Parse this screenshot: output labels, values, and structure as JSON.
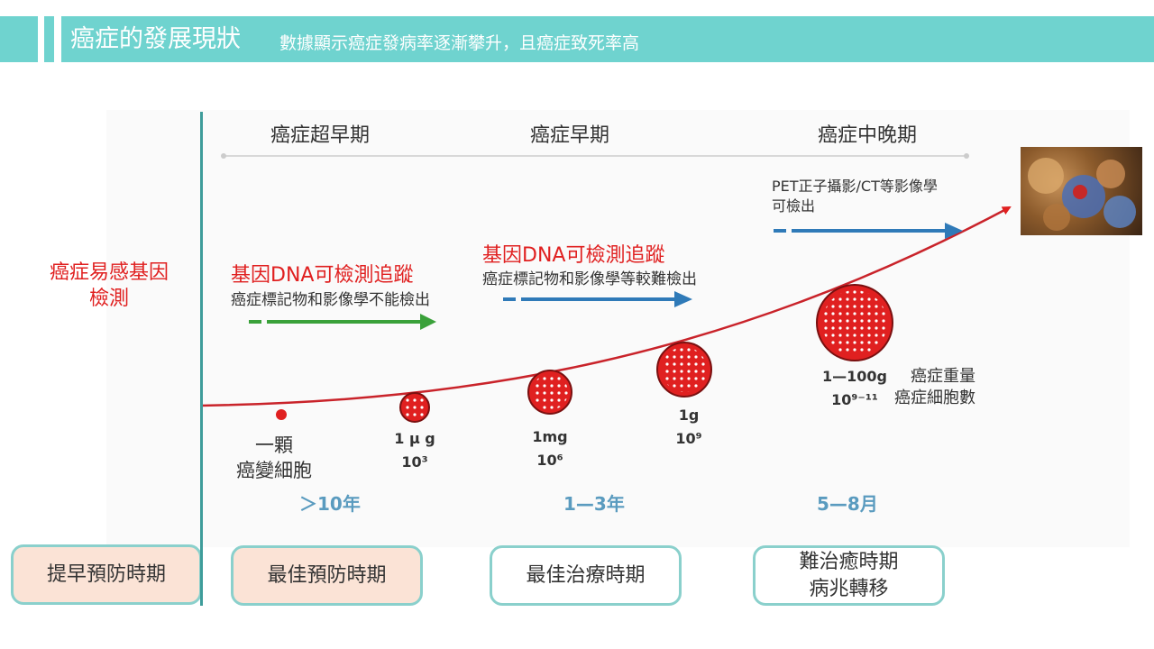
{
  "header": {
    "title": "癌症的發展現狀",
    "subtitle": "數據顯示癌症發病率逐漸攀升，且癌症致死率高"
  },
  "left_label": {
    "line1": "癌症易感基因",
    "line2": "檢測"
  },
  "phases": {
    "ultra_early": "癌症超早期",
    "early": "癌症早期",
    "mid_late": "癌症中晚期"
  },
  "detection": {
    "stage1": {
      "title": "基因DNA可檢測追蹤",
      "desc": "癌症標記物和影像學不能檢出"
    },
    "stage2": {
      "title": "基因DNA可檢測追蹤",
      "desc": "癌症標記物和影像學等較難檢出"
    },
    "stage3": {
      "line1": "PET正子攝影/CT等影像學",
      "line2": "可檢出"
    }
  },
  "tumors": [
    {
      "label1": "一顆",
      "label2": "癌變細胞"
    },
    {
      "label1": "1 μ g",
      "label2": "10³"
    },
    {
      "label1": "1mg",
      "label2": "10⁶"
    },
    {
      "label1": "1g",
      "label2": "10⁹"
    },
    {
      "label1": "1—100g",
      "label2": "10⁹⁻¹¹"
    }
  ],
  "legend": {
    "weight": "癌症重量",
    "cells": "癌症細胞數"
  },
  "durations": {
    "d1": "＞10年",
    "d2": "1—3年",
    "d3": "5—8月"
  },
  "periods": {
    "p1": "提早預防時期",
    "p2": "最佳預防時期",
    "p3": "最佳治療時期",
    "p4_line1": "難治癒時期",
    "p4_line2": "病兆轉移"
  },
  "colors": {
    "accent": "#6fd3cf",
    "red": "#e02020",
    "green": "#3aa13a",
    "blue": "#2f7ab8"
  }
}
